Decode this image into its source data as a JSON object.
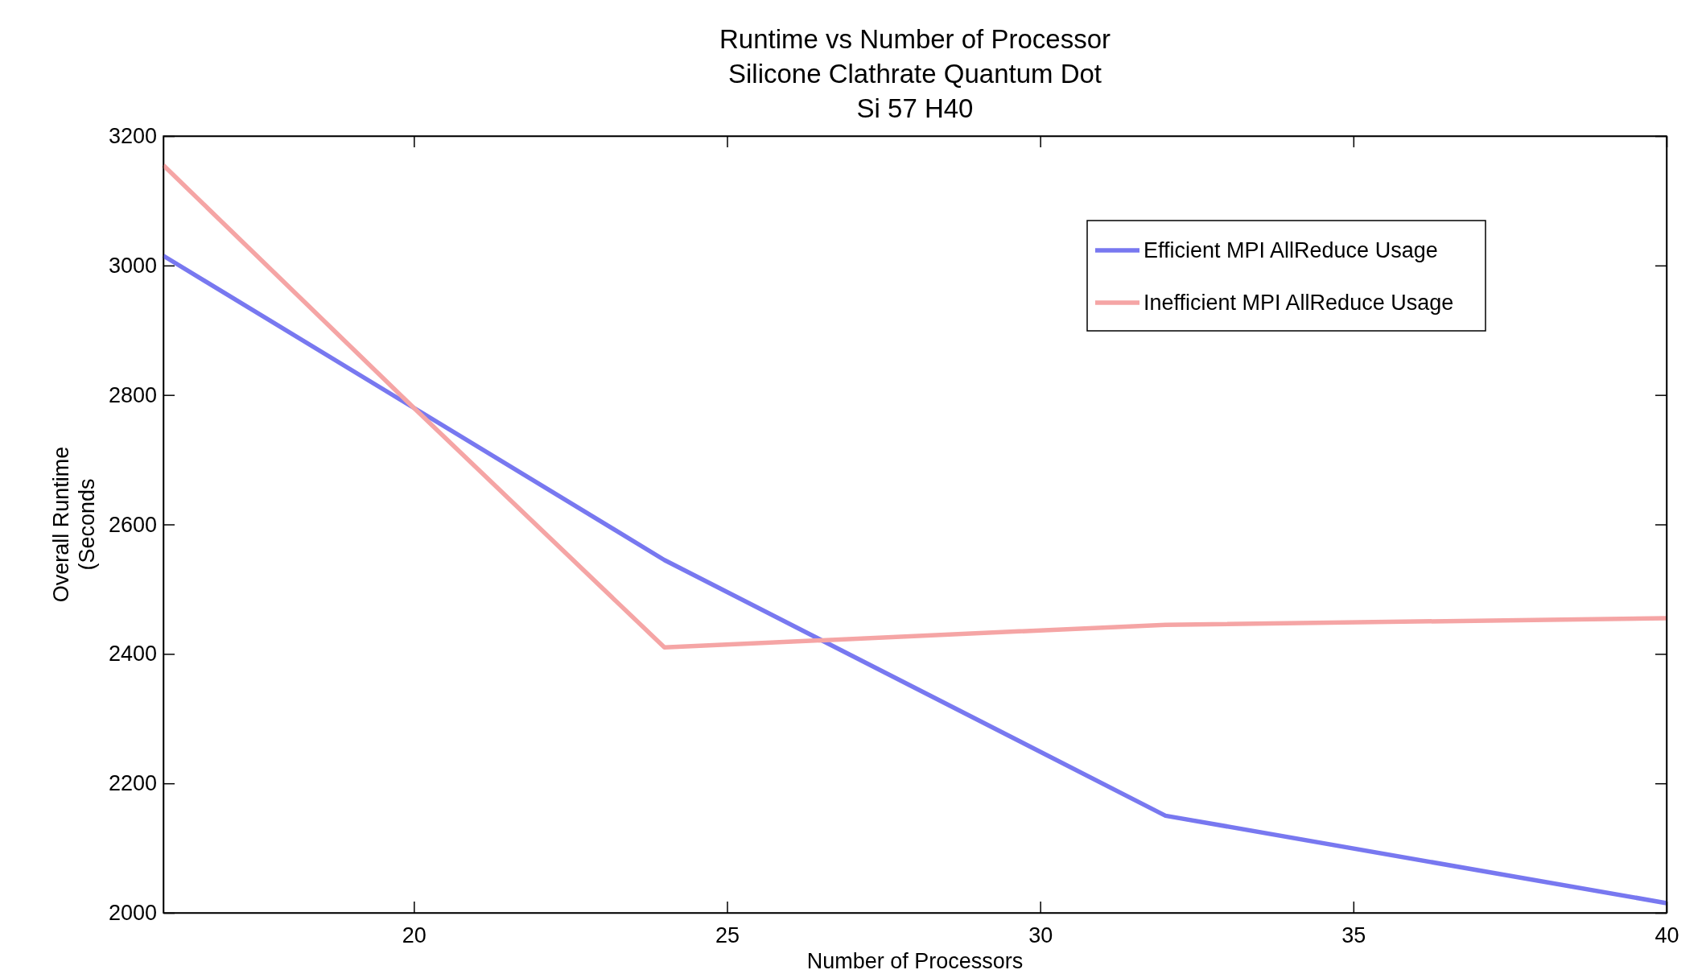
{
  "chart_data": {
    "type": "line",
    "title": "Runtime vs Number of Processor",
    "subtitle": "Silicone Clathrate Quantum Dot\nSi 57 H40",
    "xlabel": "Number of Processors",
    "ylabel": "Overall Runtime\n(Seconds",
    "x": [
      16,
      20,
      24,
      32,
      40
    ],
    "series": [
      {
        "name": "Efficient MPI AllReduce Usage",
        "color": "#7878f0",
        "values": [
          3015,
          2780,
          2545,
          2150,
          2015
        ]
      },
      {
        "name": "Inefficient MPI AllReduce Usage",
        "color": "#f5a5a5",
        "values": [
          3155,
          2780,
          2410,
          2445,
          2455
        ]
      }
    ],
    "xlim": [
      16,
      40
    ],
    "xticks": [
      20,
      25,
      30,
      35,
      40
    ],
    "ylim": [
      2000,
      3200
    ],
    "yticks": [
      2000,
      2200,
      2400,
      2600,
      2800,
      3000,
      3200
    ],
    "legend": "top right",
    "grid": false,
    "marker": "none",
    "line_style": "solid"
  }
}
